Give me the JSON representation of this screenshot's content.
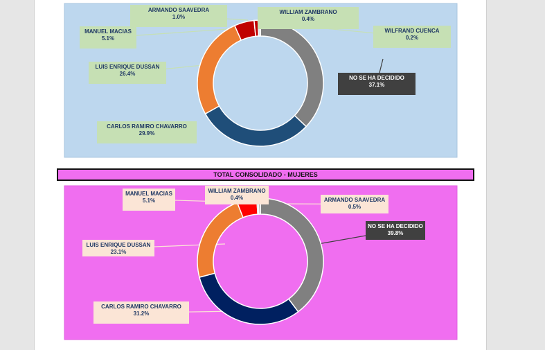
{
  "section_title": "TOTAL CONSOLIDADO - MUJERES",
  "colors": {
    "panel1_bg": "#bdd7ee",
    "panel2_bg": "#f06ef0",
    "label_green": "#c6e0b4",
    "label_peach": "#fbe5d6",
    "label_dark": "#404040"
  },
  "chart_data": [
    {
      "type": "pie",
      "subtype": "doughnut",
      "title": "",
      "series": [
        {
          "labels": [
            "NO SE HA DECIDIDO",
            "CARLOS RAMIRO CHAVARRO",
            "LUIS ENRIQUE DUSSAN",
            "MANUEL MACIAS",
            "ARMANDO SAAVEDRA",
            "WILLIAM ZAMBRANO",
            "WILFRAND CUENCA"
          ],
          "values": [
            37.1,
            29.9,
            26.4,
            5.1,
            1.0,
            0.4,
            0.2
          ],
          "display": [
            "37.1%",
            "29.9%",
            "26.4%",
            "5.1%",
            "1.0%",
            "0.4%",
            "0.2%"
          ],
          "colors": [
            "#808080",
            "#1f4e79",
            "#ed7d31",
            "#c00000",
            "#c00000",
            "#2e75b6",
            "#a6a6a6"
          ]
        }
      ]
    },
    {
      "type": "pie",
      "subtype": "doughnut",
      "title": "",
      "series": [
        {
          "labels": [
            "NO SE HA DECIDIDO",
            "CARLOS RAMIRO CHAVARRO",
            "LUIS ENRIQUE DUSSAN",
            "MANUEL MACIAS",
            "WILLIAM ZAMBRANO",
            "ARMANDO SAAVEDRA"
          ],
          "values": [
            39.8,
            31.2,
            23.1,
            5.1,
            0.4,
            0.5
          ],
          "display": [
            "39.8%",
            "31.2%",
            "23.1%",
            "5.1%",
            "0.4%",
            "0.5%"
          ],
          "colors": [
            "#808080",
            "#002060",
            "#ed7d31",
            "#ff0000",
            "#2e75b6",
            "#a6a6a6"
          ]
        }
      ]
    }
  ]
}
